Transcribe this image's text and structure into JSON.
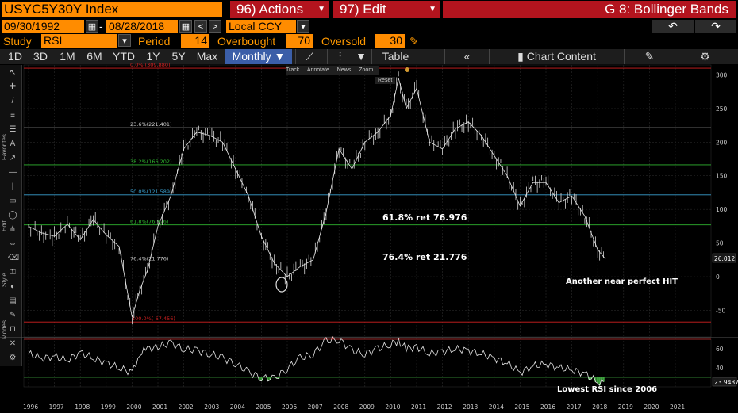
{
  "header": {
    "ticker": "USYC5Y30Y Index",
    "actions_label": "96) Actions",
    "edit_label": "97) Edit",
    "chart_label": "G 8: Bollinger Bands"
  },
  "dates": {
    "start": "09/30/1992",
    "dash": "-",
    "end": "08/28/2018",
    "currency": "Local CCY"
  },
  "study": {
    "study_label": "Study",
    "study_value": "RSI",
    "period_label": "Period",
    "period_value": "14",
    "overbought_label": "Overbought",
    "overbought_value": "70",
    "oversold_label": "Oversold",
    "oversold_value": "30"
  },
  "toolbar": {
    "ranges": [
      "1D",
      "3D",
      "1M",
      "6M",
      "YTD",
      "1Y",
      "5Y",
      "Max"
    ],
    "frequency": "Monthly",
    "table_label": "Table",
    "chart_content_label": "Chart Content"
  },
  "side": {
    "favorites": "Favorites",
    "edit": "Edit",
    "style": "Style",
    "modes": "Modes"
  },
  "mini_toolbar": {
    "track": "Track",
    "annotate": "Annotate",
    "news": "News",
    "zoom": "Zoom",
    "reset": "Reset"
  },
  "annotations": {
    "ret618": "61.8% ret 76.976",
    "ret764": "76.4% ret 21.776",
    "hit": "Another near perfect HIT",
    "rsi": "Lowest RSI since 2006"
  },
  "fib_labels": [
    {
      "text": "0.0% (309.880)",
      "value": 309.88
    },
    {
      "text": "23.6%(221.401)",
      "value": 221.401
    },
    {
      "text": "38.2%(166.202)",
      "value": 166.202
    },
    {
      "text": "50.0%(121.589)",
      "value": 121.589
    },
    {
      "text": "61.8%(76.976)",
      "value": 76.976
    },
    {
      "text": "76.4%(21.776)",
      "value": 21.776
    },
    {
      "text": "100.0%(-67.456)",
      "value": -67.456
    }
  ],
  "last_price": "26.012",
  "last_rsi": "23.9437",
  "colors": {
    "orange": "#ff8c00",
    "red_menu": "#b3141e",
    "fib_red": "#d42020",
    "fib_white": "#bfbfbf",
    "fib_green": "#2fb52f",
    "fib_blue": "#3aa0d0",
    "rsi_green": "#3ea33e",
    "rsi_red": "#c83030"
  },
  "chart_data": {
    "type": "line",
    "main": {
      "y_ticks": [
        300,
        250,
        200,
        150,
        100,
        50,
        0,
        -50
      ],
      "ylim": [
        -85,
        312
      ],
      "x_labels": [
        "1996",
        "1997",
        "1998",
        "1999",
        "2000",
        "2001",
        "2002",
        "2003",
        "2004",
        "2005",
        "2006",
        "2007",
        "2008",
        "2009",
        "2010",
        "2011",
        "2012",
        "2013",
        "2014",
        "2015",
        "2016",
        "2017",
        "2018",
        "2019",
        "2020",
        "2021"
      ],
      "x": [
        1996.0,
        1996.5,
        1997.0,
        1997.5,
        1998.0,
        1998.5,
        1999.0,
        1999.5,
        2000.0,
        2000.3,
        2000.6,
        2001.0,
        2001.5,
        2002.0,
        2002.5,
        2003.0,
        2003.5,
        2004.0,
        2004.5,
        2005.0,
        2005.5,
        2006.0,
        2006.5,
        2007.0,
        2007.5,
        2008.0,
        2008.5,
        2009.0,
        2009.5,
        2010.0,
        2010.3,
        2010.6,
        2011.0,
        2011.5,
        2012.0,
        2012.5,
        2013.0,
        2013.5,
        2014.0,
        2014.5,
        2015.0,
        2015.5,
        2016.0,
        2016.5,
        2017.0,
        2017.5,
        2018.0,
        2018.3
      ],
      "values": [
        75,
        65,
        60,
        78,
        55,
        85,
        62,
        45,
        -60,
        -20,
        10,
        75,
        120,
        190,
        215,
        210,
        200,
        160,
        120,
        60,
        20,
        0,
        15,
        25,
        95,
        190,
        160,
        200,
        215,
        240,
        295,
        250,
        280,
        200,
        190,
        220,
        230,
        210,
        180,
        150,
        105,
        140,
        140,
        110,
        120,
        90,
        40,
        26
      ]
    },
    "rsi": {
      "y_ticks": [
        60,
        40
      ],
      "values": [
        55,
        50,
        52,
        48,
        56,
        50,
        45,
        40,
        35,
        55,
        60,
        62,
        66,
        60,
        58,
        55,
        50,
        45,
        35,
        30,
        28,
        40,
        50,
        55,
        68,
        70,
        58,
        55,
        60,
        65,
        68,
        60,
        62,
        55,
        57,
        60,
        58,
        55,
        50,
        45,
        35,
        42,
        44,
        40,
        38,
        34,
        25,
        24
      ]
    }
  }
}
